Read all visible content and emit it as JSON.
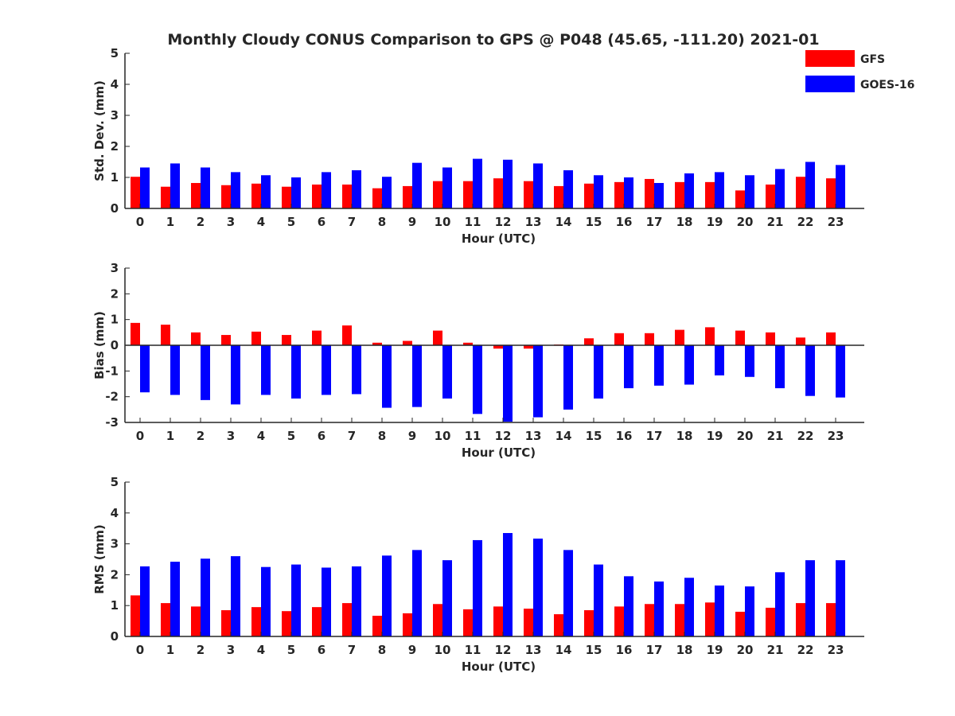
{
  "title": "Monthly Cloudy CONUS Comparison to GPS @ P048 (45.65, -111.20) 2021-01",
  "legend": [
    {
      "name": "GFS",
      "color": "#ff0000"
    },
    {
      "name": "GOES-16",
      "color": "#0000ff"
    }
  ],
  "chart_data": [
    {
      "type": "bar",
      "xlabel": "Hour (UTC)",
      "ylabel": "Std. Dev. (mm)",
      "ylim": [
        0,
        5
      ],
      "yticks": [
        0,
        1,
        2,
        3,
        4,
        5
      ],
      "categories": [
        "0",
        "1",
        "2",
        "3",
        "4",
        "5",
        "6",
        "7",
        "8",
        "9",
        "10",
        "11",
        "12",
        "13",
        "14",
        "15",
        "16",
        "17",
        "18",
        "19",
        "20",
        "21",
        "22",
        "23"
      ],
      "series": [
        {
          "name": "GFS",
          "color": "#ff0000",
          "values": [
            1.02,
            0.7,
            0.82,
            0.75,
            0.8,
            0.7,
            0.77,
            0.77,
            0.65,
            0.72,
            0.88,
            0.88,
            0.97,
            0.88,
            0.72,
            0.8,
            0.85,
            0.95,
            0.85,
            0.85,
            0.58,
            0.77,
            1.02,
            0.97
          ]
        },
        {
          "name": "GOES-16",
          "color": "#0000ff",
          "values": [
            1.32,
            1.45,
            1.32,
            1.17,
            1.07,
            1.0,
            1.17,
            1.23,
            1.02,
            1.47,
            1.32,
            1.6,
            1.57,
            1.45,
            1.23,
            1.07,
            1.0,
            0.82,
            1.13,
            1.17,
            1.07,
            1.27,
            1.5,
            1.4
          ]
        }
      ]
    },
    {
      "type": "bar",
      "xlabel": "Hour (UTC)",
      "ylabel": "Bias (mm)",
      "ylim": [
        -3,
        3
      ],
      "yticks": [
        -3,
        -2,
        -1,
        0,
        1,
        2,
        3
      ],
      "categories": [
        "0",
        "1",
        "2",
        "3",
        "4",
        "5",
        "6",
        "7",
        "8",
        "9",
        "10",
        "11",
        "12",
        "13",
        "14",
        "15",
        "16",
        "17",
        "18",
        "19",
        "20",
        "21",
        "22",
        "23"
      ],
      "series": [
        {
          "name": "GFS",
          "color": "#ff0000",
          "values": [
            0.87,
            0.8,
            0.5,
            0.4,
            0.53,
            0.4,
            0.57,
            0.77,
            0.1,
            0.17,
            0.57,
            0.1,
            -0.13,
            -0.13,
            0.03,
            0.27,
            0.47,
            0.47,
            0.6,
            0.7,
            0.57,
            0.5,
            0.3,
            0.5
          ]
        },
        {
          "name": "GOES-16",
          "color": "#0000ff",
          "values": [
            -1.83,
            -1.93,
            -2.13,
            -2.3,
            -1.93,
            -2.07,
            -1.93,
            -1.9,
            -2.43,
            -2.4,
            -2.07,
            -2.67,
            -2.97,
            -2.8,
            -2.5,
            -2.07,
            -1.67,
            -1.57,
            -1.53,
            -1.17,
            -1.23,
            -1.67,
            -1.97,
            -2.03
          ]
        }
      ]
    },
    {
      "type": "bar",
      "xlabel": "Hour (UTC)",
      "ylabel": "RMS (mm)",
      "ylim": [
        0,
        5
      ],
      "yticks": [
        0,
        1,
        2,
        3,
        4,
        5
      ],
      "categories": [
        "0",
        "1",
        "2",
        "3",
        "4",
        "5",
        "6",
        "7",
        "8",
        "9",
        "10",
        "11",
        "12",
        "13",
        "14",
        "15",
        "16",
        "17",
        "18",
        "19",
        "20",
        "21",
        "22",
        "23"
      ],
      "series": [
        {
          "name": "GFS",
          "color": "#ff0000",
          "values": [
            1.33,
            1.08,
            0.97,
            0.85,
            0.95,
            0.82,
            0.95,
            1.08,
            0.67,
            0.75,
            1.05,
            0.88,
            0.97,
            0.9,
            0.72,
            0.85,
            0.97,
            1.05,
            1.05,
            1.1,
            0.8,
            0.93,
            1.08,
            1.08
          ]
        },
        {
          "name": "GOES-16",
          "color": "#0000ff",
          "values": [
            2.27,
            2.42,
            2.52,
            2.6,
            2.25,
            2.33,
            2.23,
            2.27,
            2.62,
            2.8,
            2.47,
            3.12,
            3.35,
            3.17,
            2.8,
            2.33,
            1.95,
            1.78,
            1.9,
            1.65,
            1.62,
            2.08,
            2.47,
            2.47
          ]
        }
      ]
    }
  ]
}
